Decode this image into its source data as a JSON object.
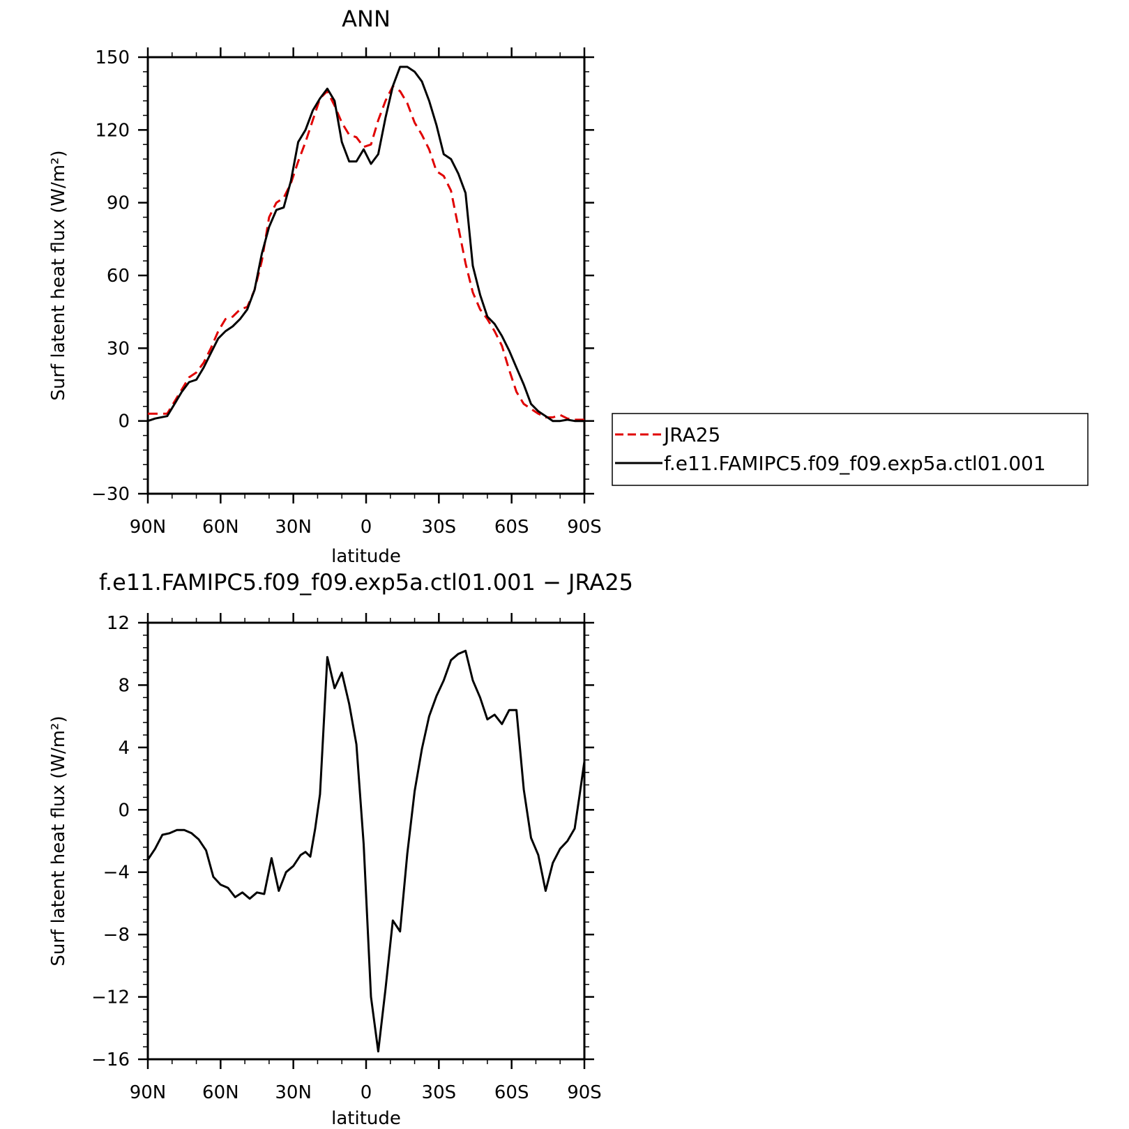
{
  "chart_data": [
    {
      "type": "line",
      "title": "ANN",
      "xlabel": "latitude",
      "ylabel": "Surf latent heat flux (W/m²)",
      "xlim": [
        90,
        -90
      ],
      "ylim": [
        -30,
        150
      ],
      "yticks": [
        -30,
        0,
        30,
        60,
        90,
        120,
        150
      ],
      "xtick_values": [
        90,
        60,
        30,
        0,
        -30,
        -60,
        -90
      ],
      "xtick_labels": [
        "90N",
        "60N",
        "30N",
        "0",
        "30S",
        "60S",
        "90S"
      ],
      "grid": false,
      "legend_position": "right",
      "series": [
        {
          "name": "JRA25",
          "color": "#e00000",
          "style": "dashed",
          "x": [
            90,
            87,
            82,
            79,
            76,
            73,
            70,
            67,
            64,
            61,
            58,
            55,
            52,
            49,
            46,
            43,
            40,
            37,
            34,
            31,
            28,
            25,
            22,
            19,
            16,
            13,
            10,
            7,
            4,
            1,
            -2,
            -5,
            -8,
            -11,
            -14,
            -17,
            -20,
            -23,
            -26,
            -29,
            -32,
            -35,
            -38,
            -41,
            -44,
            -47,
            -50,
            -53,
            -56,
            -59,
            -62,
            -65,
            -68,
            -71,
            -74,
            -77,
            -80,
            -83,
            -86,
            -90
          ],
          "y": [
            3,
            3,
            3,
            8,
            13,
            18,
            20,
            24,
            30,
            37,
            42,
            43,
            46,
            47,
            54,
            66,
            84,
            90,
            92,
            98,
            107,
            115,
            124,
            133,
            136,
            130,
            123,
            118,
            117,
            113,
            114,
            124,
            132,
            138,
            136,
            131,
            123,
            118,
            112,
            103,
            101,
            95,
            80,
            65,
            53,
            46,
            42,
            37,
            31,
            21,
            12,
            7,
            5,
            3,
            1.5,
            1.5,
            2.5,
            1,
            0.5,
            0.5
          ]
        },
        {
          "name": "f.e11.FAMIPC5.f09_f09.exp5a.ctl01.001",
          "color": "#000000",
          "style": "solid",
          "x": [
            90,
            87,
            82,
            79,
            76,
            73,
            70,
            67,
            64,
            61,
            58,
            55,
            52,
            49,
            46,
            43,
            40,
            37,
            34,
            31,
            28,
            25,
            22,
            19,
            16,
            13,
            10,
            7,
            4,
            1,
            -2,
            -5,
            -8,
            -11,
            -14,
            -17,
            -20,
            -23,
            -26,
            -29,
            -32,
            -35,
            -38,
            -41,
            -44,
            -47,
            -50,
            -53,
            -56,
            -59,
            -62,
            -65,
            -68,
            -71,
            -74,
            -77,
            -80,
            -83,
            -86,
            -90
          ],
          "y": [
            0,
            1,
            2,
            7,
            12,
            16,
            17,
            22,
            28,
            34,
            37,
            39,
            42,
            46,
            54,
            69,
            80,
            87,
            88,
            99,
            115,
            120,
            128,
            133,
            137,
            132,
            115,
            107,
            107,
            112,
            106,
            110,
            125,
            138,
            146,
            146,
            144,
            140,
            132,
            122,
            110,
            108,
            102,
            94,
            64,
            52,
            43,
            40,
            35,
            29,
            22,
            15,
            7,
            4,
            2,
            0,
            0,
            0.5,
            0,
            0
          ]
        }
      ]
    },
    {
      "type": "line",
      "title": "f.e11.FAMIPC5.f09_f09.exp5a.ctl01.001 − JRA25",
      "xlabel": "latitude",
      "ylabel": "Surf latent heat flux (W/m²)",
      "xlim": [
        90,
        -90
      ],
      "ylim": [
        -16,
        12
      ],
      "yticks": [
        -16,
        -12,
        -8,
        -4,
        0,
        4,
        8,
        12
      ],
      "xtick_values": [
        90,
        60,
        30,
        0,
        -30,
        -60,
        -90
      ],
      "xtick_labels": [
        "90N",
        "60N",
        "30N",
        "0",
        "30S",
        "60S",
        "90S"
      ],
      "grid": false,
      "series": [
        {
          "color": "#000000",
          "style": "solid",
          "x": [
            90,
            87,
            84,
            81,
            78,
            75,
            72,
            69,
            66,
            63,
            60,
            57,
            54,
            51,
            48,
            45,
            42,
            39,
            36,
            33,
            30,
            27,
            25,
            23,
            21,
            19,
            16,
            13,
            10,
            7,
            4,
            1,
            -2,
            -5,
            -8,
            -11,
            -14,
            -17,
            -20,
            -23,
            -26,
            -29,
            -32,
            -35,
            -38,
            -41,
            -44,
            -47,
            -50,
            -53,
            -56,
            -59,
            -62,
            -65,
            -68,
            -71,
            -74,
            -77,
            -80,
            -83,
            -86,
            -88,
            -90
          ],
          "y": [
            -3.2,
            -2.5,
            -1.6,
            -1.5,
            -1.3,
            -1.3,
            -1.5,
            -1.9,
            -2.6,
            -4.3,
            -4.8,
            -5.0,
            -5.6,
            -5.3,
            -5.7,
            -5.3,
            -5.4,
            -3.1,
            -5.2,
            -4.0,
            -3.6,
            -2.9,
            -2.7,
            -3.0,
            -1.2,
            1.0,
            9.8,
            7.8,
            8.8,
            6.8,
            4.2,
            -2.2,
            -12.0,
            -15.5,
            -11.5,
            -7.1,
            -7.8,
            -2.8,
            1.2,
            3.9,
            6.0,
            7.3,
            8.3,
            9.6,
            10.0,
            10.2,
            8.3,
            7.2,
            5.8,
            6.1,
            5.5,
            6.4,
            6.4,
            1.3,
            -1.8,
            -2.9,
            -5.2,
            -3.4,
            -2.5,
            -2.0,
            -1.2,
            0.9,
            3.1
          ]
        }
      ]
    }
  ],
  "legend": {
    "entries": [
      "JRA25",
      "f.e11.FAMIPC5.f09_f09.exp5a.ctl01.001"
    ]
  }
}
